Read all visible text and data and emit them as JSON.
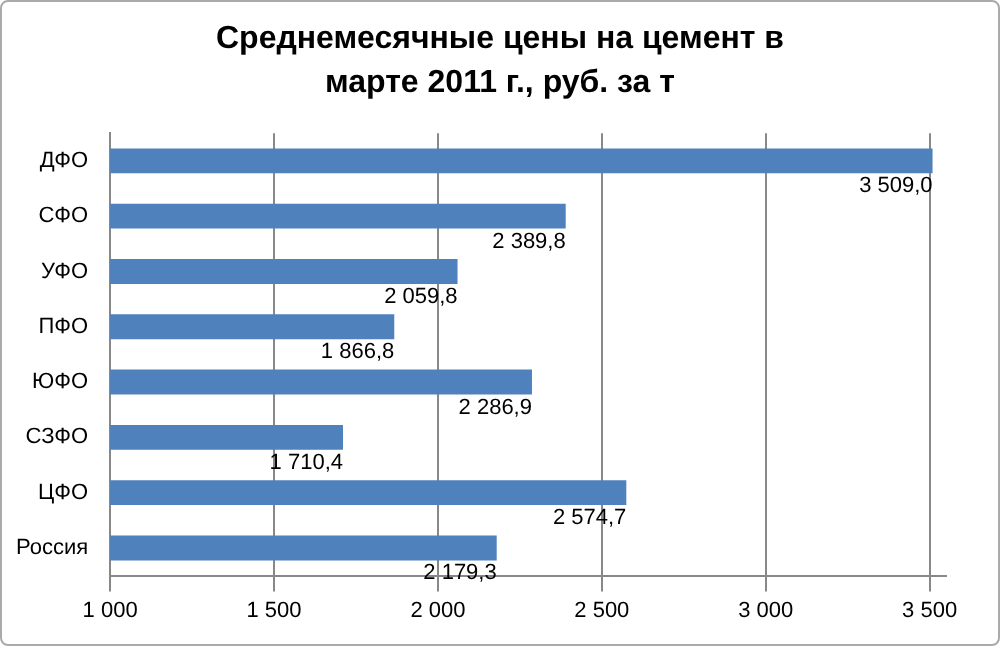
{
  "chart_data": {
    "type": "bar",
    "orientation": "horizontal",
    "title": "Среднемесячные цены на цемент в марте 2011 г., руб. за т",
    "categories": [
      "ДФО",
      "СФО",
      "УФО",
      "ПФО",
      "ЮФО",
      "СЗФО",
      "ЦФО",
      "Россия"
    ],
    "values": [
      3509.0,
      2389.8,
      2059.8,
      1866.8,
      2286.9,
      1710.4,
      2574.7,
      2179.3
    ],
    "value_labels": [
      "3 509,0",
      "2 389,8",
      "2 059,8",
      "1 866,8",
      "2 286,9",
      "1 710,4",
      "2 574,7",
      "2 179,3"
    ],
    "color": "#4f81bd",
    "xlim": [
      1000,
      3550
    ],
    "xticks": [
      {
        "value": 1000,
        "label": "1 000"
      },
      {
        "value": 1500,
        "label": "1 500"
      },
      {
        "value": 2000,
        "label": "2 000"
      },
      {
        "value": 2500,
        "label": "2 500"
      },
      {
        "value": 3000,
        "label": "3 000"
      },
      {
        "value": 3500,
        "label": "3 500"
      }
    ],
    "grid": "x",
    "legend": false
  }
}
